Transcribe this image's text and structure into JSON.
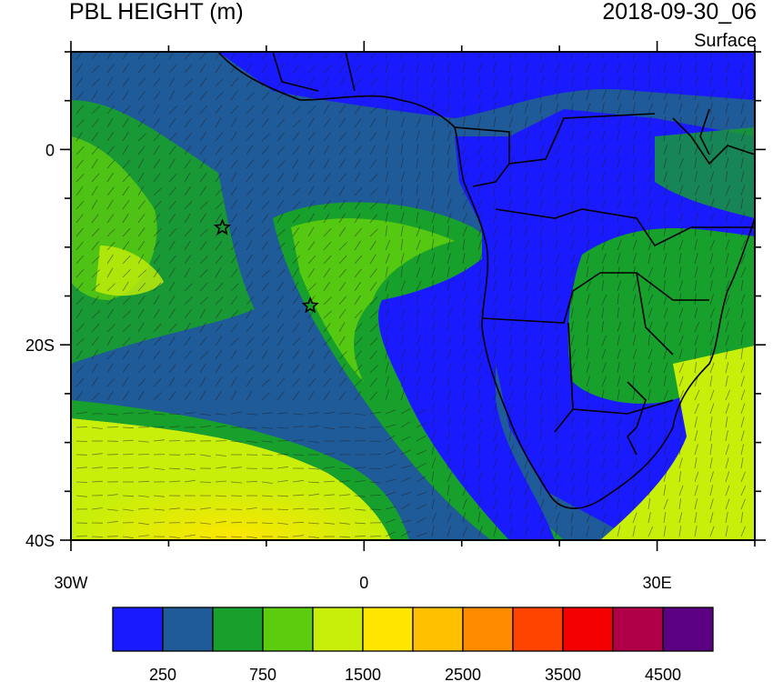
{
  "title_left": "PBL HEIGHT (m)",
  "title_right": "2018-09-30_06",
  "subtitle": "Surface",
  "axes": {
    "x_ticks": [
      {
        "value": -30,
        "label": "30W"
      },
      {
        "value": 0,
        "label": "0"
      },
      {
        "value": 30,
        "label": "30E"
      }
    ],
    "y_ticks": [
      {
        "value": 0,
        "label": "0"
      },
      {
        "value": -20,
        "label": "20S"
      },
      {
        "value": -40,
        "label": "40S"
      }
    ],
    "lon_range": [
      -30,
      40
    ],
    "lat_range": [
      -40,
      10
    ]
  },
  "colorbar": {
    "levels": [
      0,
      250,
      500,
      750,
      1000,
      1500,
      2000,
      2500,
      3000,
      3500,
      4000,
      4500,
      5000
    ],
    "colors": [
      "#1a1aff",
      "#1f5a99",
      "#17a02b",
      "#5ccc0e",
      "#c7ef0a",
      "#ffe600",
      "#ffc000",
      "#ff8c00",
      "#ff4400",
      "#f50000",
      "#b00048",
      "#5a0080"
    ],
    "labels": [
      "250",
      "750",
      "1500",
      "2500",
      "3500",
      "4500"
    ]
  },
  "markers": [
    {
      "name": "star-west",
      "lon": -14.5,
      "lat": -8
    },
    {
      "name": "star-central",
      "lon": -5.5,
      "lat": -16
    }
  ]
}
